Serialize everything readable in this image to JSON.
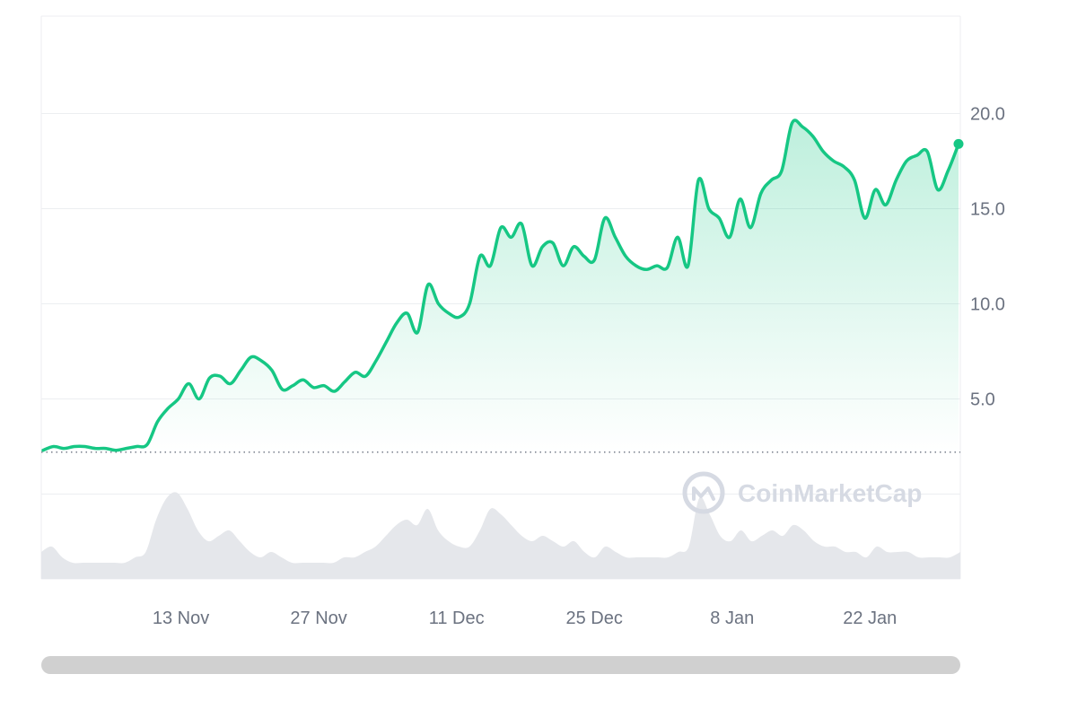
{
  "watermark": {
    "text": "CoinMarketCap",
    "icon": "coinmarketcap-logo-icon"
  },
  "colors": {
    "line": "#16c784",
    "area": "#16c784",
    "volume": "#e5e7eb",
    "grid": "#eceef1",
    "axis_text": "#6b7280",
    "scrollbar": "#d0d0d0"
  },
  "chart_data": {
    "type": "line",
    "x_start": "2023-10-30",
    "x_end": "2024-01-31",
    "x_ticks": [
      "13 Nov",
      "27 Nov",
      "11 Dec",
      "25 Dec",
      "8 Jan",
      "22 Jan"
    ],
    "y_ticks": [
      "5.0",
      "10.0",
      "15.0",
      "20.0"
    ],
    "ylim": [
      0,
      25
    ],
    "baseline": 2.2,
    "grid": true,
    "series": [
      {
        "values": [
          2.3,
          2.5,
          2.4,
          2.5,
          2.5,
          2.4,
          2.4,
          2.3,
          2.4,
          2.5,
          2.6,
          3.8,
          4.5,
          5.0,
          5.8,
          5.0,
          6.1,
          6.2,
          5.8,
          6.5,
          7.2,
          7.0,
          6.5,
          5.5,
          5.7,
          6.0,
          5.6,
          5.7,
          5.4,
          5.9,
          6.4,
          6.2,
          7.0,
          8.0,
          9.0,
          9.5,
          8.5,
          11.0,
          10.0,
          9.5,
          9.3,
          10.0,
          12.5,
          12.0,
          14.0,
          13.5,
          14.2,
          12.0,
          13.0,
          13.2,
          12.0,
          13.0,
          12.5,
          12.3,
          14.5,
          13.5,
          12.5,
          12.0,
          11.8,
          12.0,
          11.9,
          13.5,
          12.0,
          16.5,
          15.0,
          14.5,
          13.5,
          15.5,
          14.0,
          15.8,
          16.5,
          17.0,
          19.5,
          19.3,
          18.8,
          18.0,
          17.5,
          17.2,
          16.5,
          14.5,
          16.0,
          15.2,
          16.5,
          17.5,
          17.8,
          18.0,
          16.0,
          17.0,
          18.4
        ]
      }
    ],
    "volume": [
      4,
      5,
      3,
      2,
      2,
      2,
      2,
      2,
      2,
      3,
      4,
      10,
      14,
      15,
      12,
      8,
      6,
      7,
      8,
      6,
      4,
      3,
      4,
      3,
      2,
      2,
      2,
      2,
      2,
      3,
      3,
      4,
      5,
      7,
      9,
      10,
      9,
      12,
      8,
      6,
      5,
      5,
      8,
      12,
      11,
      9,
      7,
      6,
      7,
      6,
      5,
      6,
      4,
      3,
      5,
      4,
      3,
      3,
      3,
      3,
      3,
      4,
      5,
      14,
      11,
      7,
      6,
      8,
      6,
      7,
      8,
      7,
      9,
      8,
      6,
      5,
      5,
      4,
      4,
      3,
      5,
      4,
      4,
      4,
      3,
      3,
      3,
      3,
      4
    ]
  }
}
